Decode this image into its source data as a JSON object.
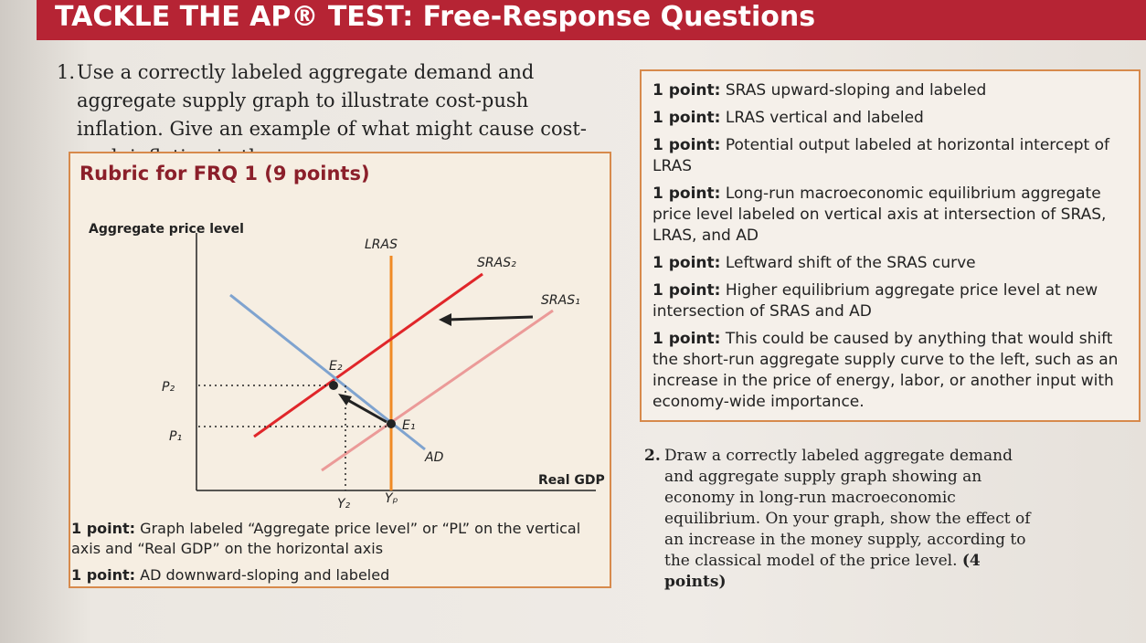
{
  "header": {
    "title": "TACKLE THE AP® TEST: Free-Response Questions"
  },
  "question1": {
    "number": "1.",
    "text": "Use a correctly labeled aggregate demand and aggregate supply graph to illustrate cost-push inflation. Give an example of what might cause cost-push inflation in the economy."
  },
  "rubric1": {
    "title": "Rubric for FRQ 1 (9 points)",
    "graph": {
      "y_axis_label": "Aggregate price level",
      "x_axis_label": "Real GDP",
      "curves": {
        "lras": "LRAS",
        "sras2": "SRAS₂",
        "sras1": "SRAS₁",
        "ad": "AD"
      },
      "points": {
        "e2": "E₂",
        "e1": "E₁",
        "p2": "P₂",
        "p1": "P₁",
        "y2": "Y₂",
        "yp": "Yₚ"
      }
    },
    "items": [
      {
        "points": "1 point:",
        "text": "Graph labeled “Aggregate price level” or “PL” on the vertical axis and “Real GDP” on the horizontal axis"
      },
      {
        "points": "1 point:",
        "text": "AD downward-sloping and labeled"
      }
    ]
  },
  "rubric1_continued": {
    "items": [
      {
        "points": "1 point:",
        "text": "SRAS upward-sloping and labeled"
      },
      {
        "points": "1 point:",
        "text": "LRAS vertical and labeled"
      },
      {
        "points": "1 point:",
        "text": "Potential output labeled at horizontal intercept of LRAS"
      },
      {
        "points": "1 point:",
        "text": "Long-run macroeconomic equilibrium aggregate price level labeled on vertical axis at intersection of SRAS, LRAS, and AD"
      },
      {
        "points": "1 point:",
        "text": "Leftward shift of the SRAS curve"
      },
      {
        "points": "1 point:",
        "text": "Higher equilibrium aggregate price level at new intersection of SRAS and AD"
      },
      {
        "points": "1 point:",
        "text": "This could be caused by anything that would shift the short-run aggregate supply curve to the left, such as an increase in the price of energy, labor, or another input with economy-wide importance."
      }
    ]
  },
  "question2": {
    "number": "2.",
    "text": "Draw a correctly labeled aggregate demand and aggregate supply graph showing an economy in long-run macroeconomic equilibrium. On your graph, show the effect of an increase in the money supply, according to the classical model of the price level.",
    "points": "(4 points)"
  }
}
